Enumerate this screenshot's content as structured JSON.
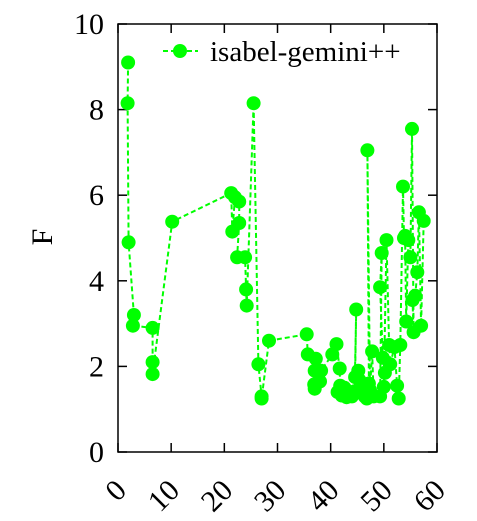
{
  "chart_data": {
    "type": "line",
    "title": "",
    "xlabel": "",
    "ylabel": "F",
    "xlim": [
      0,
      60
    ],
    "ylim": [
      0,
      10
    ],
    "xticks": [
      0,
      10,
      20,
      30,
      40,
      50,
      60
    ],
    "yticks": [
      0,
      2,
      4,
      6,
      8,
      10
    ],
    "x_tick_labels": [
      "0",
      "10",
      "20",
      "30",
      "40",
      "50",
      "60"
    ],
    "y_tick_labels": [
      "0",
      "2",
      "4",
      "6",
      "8",
      "10"
    ],
    "grid": false,
    "legend_position": "top-right",
    "colors": {
      "series": "#00ff00",
      "axes": "#000000"
    },
    "series": [
      {
        "name": "isabel-gemini++",
        "points": [
          [
            1.9,
            9.1
          ],
          [
            1.8,
            8.15
          ],
          [
            2.0,
            4.9
          ],
          [
            3.0,
            3.2
          ],
          [
            2.8,
            2.95
          ],
          [
            6.5,
            2.9
          ],
          [
            6.5,
            2.1
          ],
          [
            6.5,
            1.82
          ],
          [
            10.2,
            5.38
          ],
          [
            21.3,
            6.05
          ],
          [
            21.5,
            5.15
          ],
          [
            22.0,
            5.95
          ],
          [
            22.8,
            5.85
          ],
          [
            22.8,
            5.35
          ],
          [
            22.4,
            4.55
          ],
          [
            23.9,
            4.55
          ],
          [
            24.1,
            3.8
          ],
          [
            24.2,
            3.42
          ],
          [
            25.5,
            8.15
          ],
          [
            26.4,
            2.05
          ],
          [
            27.0,
            1.3
          ],
          [
            27.0,
            1.25
          ],
          [
            28.4,
            2.6
          ],
          [
            35.5,
            2.75
          ],
          [
            35.7,
            2.28
          ],
          [
            37.2,
            2.18
          ],
          [
            37.0,
            1.9
          ],
          [
            36.9,
            1.58
          ],
          [
            37.0,
            1.48
          ],
          [
            38.0,
            1.65
          ],
          [
            38.2,
            1.9
          ],
          [
            40.3,
            2.28
          ],
          [
            41.1,
            2.52
          ],
          [
            41.7,
            1.95
          ],
          [
            41.8,
            1.55
          ],
          [
            41.3,
            1.4
          ],
          [
            42.1,
            1.32
          ],
          [
            42.6,
            1.5
          ],
          [
            43.0,
            1.28
          ],
          [
            44.0,
            1.3
          ],
          [
            44.5,
            1.42
          ],
          [
            44.8,
            3.33
          ],
          [
            44.6,
            1.75
          ],
          [
            45.2,
            1.9
          ],
          [
            45.4,
            1.68
          ],
          [
            45.8,
            1.45
          ],
          [
            46.4,
            1.3
          ],
          [
            46.8,
            1.25
          ],
          [
            47.0,
            1.48
          ],
          [
            47.2,
            1.6
          ],
          [
            46.9,
            7.05
          ],
          [
            47.4,
            1.45
          ],
          [
            47.8,
            2.35
          ],
          [
            48.1,
            1.3
          ],
          [
            49.3,
            1.3
          ],
          [
            49.6,
            4.65
          ],
          [
            49.3,
            3.85
          ],
          [
            49.8,
            2.2
          ],
          [
            50.2,
            1.85
          ],
          [
            50.0,
            1.52
          ],
          [
            50.5,
            4.95
          ],
          [
            51.0,
            2.5
          ],
          [
            51.2,
            2.05
          ],
          [
            52.0,
            2.45
          ],
          [
            52.5,
            1.55
          ],
          [
            52.8,
            1.25
          ],
          [
            53.1,
            2.5
          ],
          [
            53.6,
            6.2
          ],
          [
            53.8,
            5.0
          ],
          [
            54.0,
            5.05
          ],
          [
            54.2,
            3.05
          ],
          [
            54.6,
            4.95
          ],
          [
            55.0,
            4.55
          ],
          [
            55.3,
            7.55
          ],
          [
            55.6,
            2.8
          ],
          [
            55.4,
            3.55
          ],
          [
            55.9,
            3.65
          ],
          [
            56.3,
            4.2
          ],
          [
            56.6,
            5.6
          ],
          [
            57.0,
            2.95
          ],
          [
            57.5,
            5.4
          ]
        ]
      }
    ]
  }
}
